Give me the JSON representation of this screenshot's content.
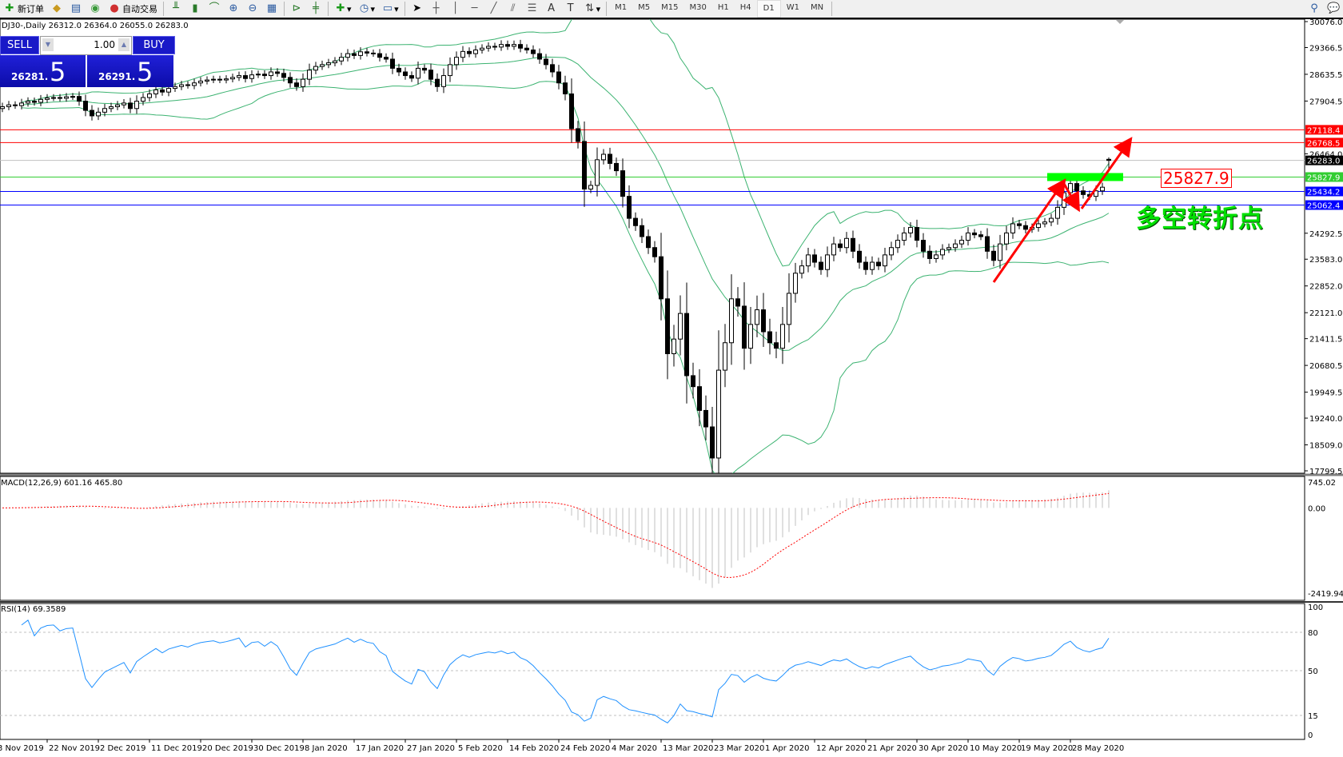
{
  "toolbar": {
    "new_order": "新订单",
    "auto_trading": "自动交易",
    "timeframes": [
      "M1",
      "M5",
      "M15",
      "M30",
      "H1",
      "H4",
      "D1",
      "W1",
      "MN"
    ],
    "active_timeframe": "D1",
    "icons": [
      "new-order-icon",
      "gold-icon",
      "data-window-icon",
      "signal-icon",
      "auto-trading-icon",
      "bar-chart-icon",
      "candlestick-icon",
      "line-chart-icon",
      "zoom-in-icon",
      "zoom-out-icon",
      "tile-windows-icon",
      "chart-shift-icon",
      "autoscroll-icon",
      "indicators-icon",
      "periods-icon",
      "templates-icon",
      "cursor-icon",
      "crosshair-icon",
      "vertical-line-icon",
      "horizontal-line-icon",
      "trendline-icon",
      "equidistant-channel-icon",
      "fibonacci-icon",
      "text-icon",
      "text-label-icon",
      "arrows-icon",
      "search-icon",
      "chat-icon"
    ]
  },
  "chart_header": "DJ30-,Daily 26312.0 26364.0 26055.0 26283.0",
  "trade_panel": {
    "sell_label": "SELL",
    "buy_label": "BUY",
    "volume": "1.00",
    "sell_price_main": "26281.",
    "sell_price_big": "5",
    "buy_price_main": "26291.",
    "buy_price_big": "5",
    "color": "#1919c8"
  },
  "annotation": {
    "level_label": "25827.9",
    "text": "多空转折点",
    "text_color": "#00e000",
    "arrow_color": "#ff0000",
    "zone_color": "#00ff00"
  },
  "chart_data": {
    "type": "candlestick",
    "symbol": "DJ30-",
    "timeframe": "Daily",
    "last_bar": {
      "open": 26312.0,
      "high": 26364.0,
      "low": 26055.0,
      "close": 26283.0
    },
    "ylim": [
      17799.5,
      30076.0
    ],
    "price_ticks": [
      "30076.0",
      "29366.5",
      "28635.5",
      "27904.5",
      "26464.0",
      "24292.5",
      "23583.0",
      "22852.0",
      "22121.0",
      "21411.5",
      "20680.5",
      "19949.5",
      "19240.0",
      "18509.0",
      "17799.5"
    ],
    "date_ticks": [
      "3 Nov 2019",
      "22 Nov 2019",
      "2 Dec 2019",
      "11 Dec 2019",
      "20 Dec 2019",
      "30 Dec 2019",
      "8 Jan 2020",
      "17 Jan 2020",
      "27 Jan 2020",
      "5 Feb 2020",
      "14 Feb 2020",
      "24 Feb 2020",
      "4 Mar 2020",
      "13 Mar 2020",
      "23 Mar 2020",
      "1 Apr 2020",
      "12 Apr 2020",
      "21 Apr 2020",
      "30 Apr 2020",
      "10 May 2020",
      "19 May 2020",
      "28 May 2020"
    ],
    "closes": [
      27750,
      27800,
      27780,
      27850,
      27900,
      27870,
      27950,
      27990,
      28000,
      27980,
      28020,
      28030,
      27900,
      27650,
      27500,
      27600,
      27700,
      27750,
      27800,
      27850,
      27700,
      27900,
      28000,
      28100,
      28210,
      28150,
      28250,
      28300,
      28350,
      28330,
      28400,
      28450,
      28480,
      28500,
      28480,
      28510,
      28550,
      28600,
      28520,
      28620,
      28640,
      28600,
      28700,
      28660,
      28550,
      28400,
      28300,
      28500,
      28750,
      28850,
      28900,
      28950,
      29000,
      29100,
      29200,
      29150,
      29250,
      29215,
      29200,
      29100,
      29050,
      28800,
      28700,
      28600,
      28530,
      28800,
      28750,
      28500,
      28300,
      28600,
      28900,
      29100,
      29260,
      29200,
      29300,
      29350,
      29400,
      29380,
      29450,
      29400,
      29450,
      29350,
      29300,
      29200,
      29050,
      28900,
      28700,
      28400,
      28100,
      27150,
      26800,
      25500,
      25600,
      26300,
      26450,
      26200,
      26000,
      25300,
      24700,
      24500,
      24200,
      23900,
      23650,
      22500,
      21000,
      21400,
      22100,
      20400,
      20100,
      19450,
      19000,
      18150,
      20550,
      21300,
      22500,
      22300,
      21150,
      21800,
      22200,
      21600,
      21300,
      21150,
      21800,
      22650,
      23200,
      23400,
      23700,
      23500,
      23300,
      23700,
      24000,
      23900,
      24150,
      23800,
      23500,
      23300,
      23500,
      23400,
      23700,
      23900,
      24100,
      24300,
      24450,
      24100,
      23800,
      23600,
      23700,
      23850,
      23900,
      24000,
      24100,
      24300,
      24250,
      24200,
      23800,
      23550,
      24000,
      24300,
      24550,
      24500,
      24400,
      24450,
      24550,
      24600,
      24700,
      25000,
      25400,
      25650,
      25450,
      25350,
      25300,
      25450,
      25550,
      26283
    ],
    "bollinger": {
      "period": 20,
      "deviation": 2,
      "color": "#3cb371"
    },
    "horizontal_levels": [
      {
        "price": 27118.4,
        "label": "27118.4",
        "color": "#ff0000"
      },
      {
        "price": 26768.5,
        "label": "26768.5",
        "color": "#ff0000"
      },
      {
        "price": 26283.0,
        "label": "26283.0",
        "color": "#000000",
        "line_color": "#c0c0c0"
      },
      {
        "price": 25827.9,
        "label": "25827.9",
        "color": "#32cd32"
      },
      {
        "price": 25434.2,
        "label": "25434.2",
        "color": "#0000ff"
      },
      {
        "price": 25062.4,
        "label": "25062.4",
        "color": "#0000ff"
      }
    ],
    "macd": {
      "label": "MACD(12,26,9) 601.16 465.80",
      "ylim": [
        -2419.94,
        745.02
      ],
      "ticks": [
        "745.02",
        "0.00",
        "-2419.94"
      ],
      "signal_color": "#ff0000"
    },
    "rsi": {
      "label": "RSI(14) 69.3589",
      "ylim": [
        0,
        100
      ],
      "ticks": [
        "100",
        "80",
        "50",
        "15",
        "0"
      ],
      "levels": [
        80,
        50,
        15
      ],
      "color": "#1e90ff"
    }
  }
}
